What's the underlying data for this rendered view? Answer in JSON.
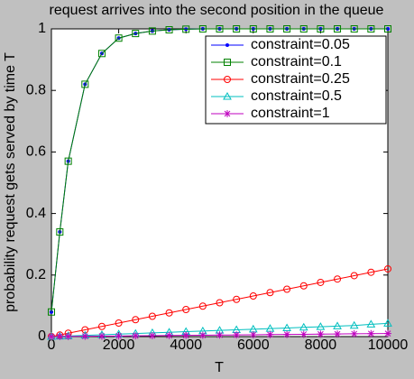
{
  "chart_data": {
    "type": "line",
    "title": "request arrives into the second position in the queue",
    "x_label": "T",
    "y_label": "probability request gets served by time T",
    "x": [
      0,
      250,
      500,
      1000,
      1500,
      2000,
      2500,
      3000,
      3500,
      4000,
      4500,
      5000,
      5500,
      6000,
      6500,
      7000,
      7500,
      8000,
      8500,
      9000,
      9500,
      10000
    ],
    "series": [
      {
        "name": "constraint=0.05",
        "color": "#0000ff",
        "marker": "dot",
        "values": [
          0.08,
          0.34,
          0.57,
          0.82,
          0.92,
          0.97,
          0.985,
          0.993,
          0.997,
          0.999,
          1,
          1,
          1,
          1,
          1,
          1,
          1,
          1,
          1,
          1,
          1,
          1
        ]
      },
      {
        "name": "constraint=0.1",
        "color": "#008000",
        "marker": "square",
        "values": [
          0.08,
          0.34,
          0.57,
          0.82,
          0.92,
          0.97,
          0.985,
          0.993,
          0.997,
          0.999,
          1,
          1,
          1,
          1,
          1,
          1,
          1,
          1,
          1,
          1,
          1,
          1
        ]
      },
      {
        "name": "constraint=0.25",
        "color": "#ff0000",
        "marker": "circle",
        "values": [
          0,
          0.005,
          0.011,
          0.022,
          0.033,
          0.044,
          0.055,
          0.066,
          0.077,
          0.088,
          0.099,
          0.11,
          0.121,
          0.132,
          0.143,
          0.154,
          0.165,
          0.176,
          0.187,
          0.198,
          0.209,
          0.22
        ]
      },
      {
        "name": "constraint=0.5",
        "color": "#00bfbf",
        "marker": "triangle",
        "values": [
          0,
          0.001,
          0.002,
          0.004,
          0.006,
          0.008,
          0.01,
          0.012,
          0.014,
          0.016,
          0.018,
          0.02,
          0.022,
          0.024,
          0.026,
          0.028,
          0.03,
          0.032,
          0.034,
          0.036,
          0.04,
          0.043
        ]
      },
      {
        "name": "constraint=1",
        "color": "#bf00bf",
        "marker": "asterisk",
        "values": [
          0,
          0.0003,
          0.0005,
          0.001,
          0.0015,
          0.002,
          0.0025,
          0.003,
          0.0035,
          0.004,
          0.0045,
          0.005,
          0.0055,
          0.006,
          0.0065,
          0.007,
          0.0075,
          0.008,
          0.0085,
          0.009,
          0.0095,
          0.01
        ]
      }
    ],
    "xlim": [
      0,
      10000
    ],
    "xticks": [
      0,
      2000,
      4000,
      6000,
      8000,
      10000
    ],
    "ylim": [
      0,
      1
    ],
    "yticks": [
      0,
      0.2,
      0.4,
      0.6,
      0.8,
      1
    ],
    "grid": false,
    "legend": "top-right"
  }
}
